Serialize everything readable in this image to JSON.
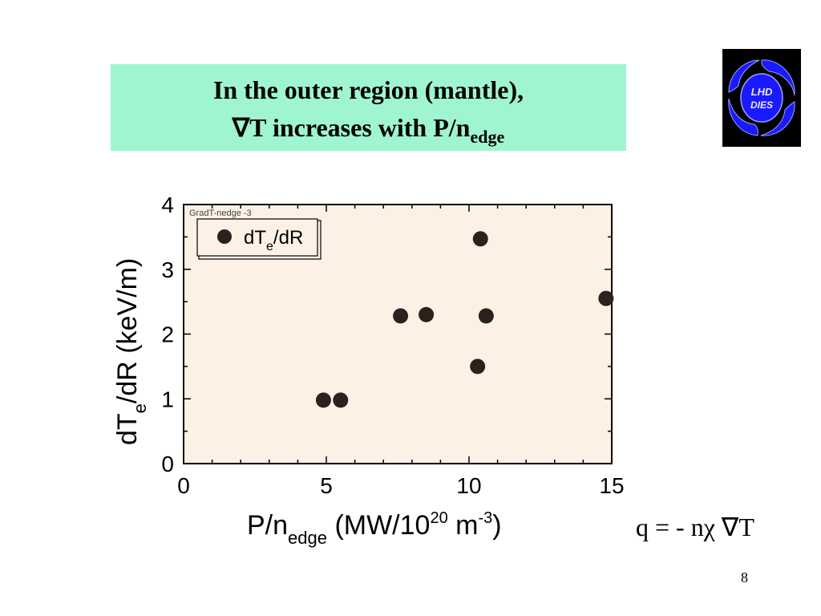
{
  "slide": {
    "title_line1": "In the outer region (mantle),",
    "title_line2_main": "∇T increases with P/n",
    "title_line2_sub": "edge",
    "formula": "q = - nχ ∇T",
    "page_number": "8",
    "logo_text_top": "LHD",
    "logo_text_bottom": "DIES",
    "colors": {
      "title_bg": "#9ff5cf",
      "plot_bg": "#fdf1e6",
      "marker": "#2b211d",
      "logo_blue": "#1a1aff"
    }
  },
  "chart_data": {
    "type": "scatter",
    "plot_label": "GradT-nedge -3",
    "xlim": [
      0,
      15
    ],
    "ylim": [
      0,
      4
    ],
    "x_ticks": [
      "0",
      "5",
      "10",
      "15"
    ],
    "y_ticks": [
      "0",
      "1",
      "2",
      "3",
      "4"
    ],
    "xlabel": {
      "pre": "P/n",
      "sub": "edge",
      "mid": " (MW/10",
      "sup1": "20",
      "post": " m",
      "sup2": "-3",
      "end": ")"
    },
    "ylabel": {
      "pre": "dT",
      "sub": "e",
      "post": "/dR  (keV/m)"
    },
    "legend": {
      "pre": "dT",
      "sub": "e",
      "post": "/dR",
      "position": "top-left"
    },
    "series": [
      {
        "name": "dTe/dR",
        "points": [
          {
            "x": 4.9,
            "y": 0.98
          },
          {
            "x": 5.5,
            "y": 0.98
          },
          {
            "x": 7.6,
            "y": 2.28
          },
          {
            "x": 8.5,
            "y": 2.3
          },
          {
            "x": 10.3,
            "y": 1.5
          },
          {
            "x": 10.4,
            "y": 3.47
          },
          {
            "x": 10.6,
            "y": 2.28
          },
          {
            "x": 14.8,
            "y": 2.55
          }
        ]
      }
    ]
  }
}
